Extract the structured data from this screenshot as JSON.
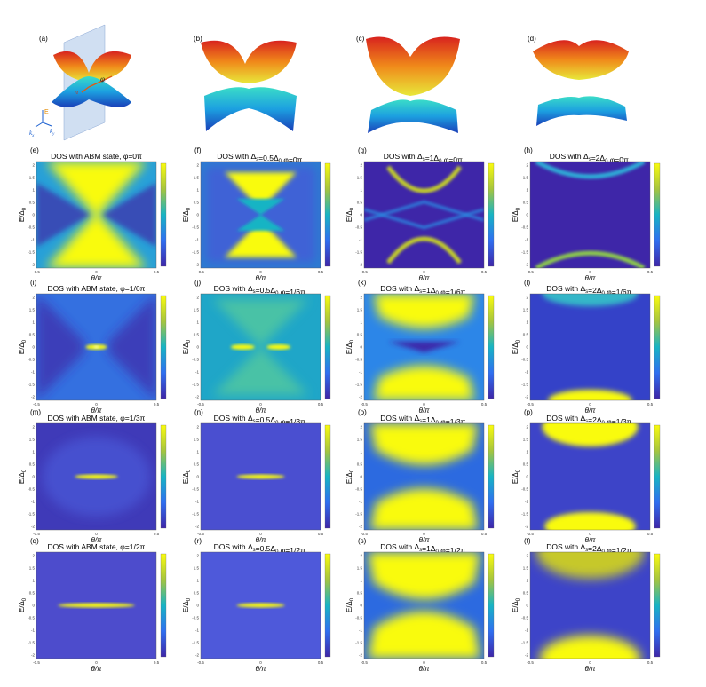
{
  "top_labels": [
    "(a)",
    "(b)",
    "(c)",
    "(d)"
  ],
  "axis_glyphs": {
    "e": "E",
    "kx": "k",
    "kx_sub": "x",
    "ky": "k",
    "ky_sub": "y",
    "phi": "φ",
    "n": "n"
  },
  "panels": [
    {
      "label": "(e)",
      "title": "DOS with ABM state, φ=0π"
    },
    {
      "label": "(f)",
      "title": "DOS with Δs=0.5Δ0 φ=0π,"
    },
    {
      "label": "(g)",
      "title": "DOS with Δs=1Δ0 φ=0π,"
    },
    {
      "label": "(h)",
      "title": "DOS with Δs=2Δ0 φ=0π,"
    },
    {
      "label": "(i)",
      "title": "DOS with ABM state, φ=1/6π"
    },
    {
      "label": "(j)",
      "title": "DOS with Δs=0.5Δ0 φ=1/6π,"
    },
    {
      "label": "(k)",
      "title": "DOS with Δs=1Δ0 φ=1/6π,"
    },
    {
      "label": "(l)",
      "title": "DOS with Δs=2Δ0 φ=1/6π,"
    },
    {
      "label": "(m)",
      "title": "DOS with ABM state, φ=1/3π"
    },
    {
      "label": "(n)",
      "title": "DOS with Δs=0.5Δ0 φ=1/3π,"
    },
    {
      "label": "(o)",
      "title": "DOS with Δs=1Δ0 φ=1/3π,"
    },
    {
      "label": "(p)",
      "title": "DOS with Δs=2Δ0 φ=1/3π,"
    },
    {
      "label": "(q)",
      "title": "DOS with ABM state, φ=1/2π"
    },
    {
      "label": "(r)",
      "title": "DOS with Δs=0.5Δ0 φ=1/2π,"
    },
    {
      "label": "(s)",
      "title": "DOS with Δs=1Δ0 φ=1/2π,"
    },
    {
      "label": "(t)",
      "title": "DOS with Δs=2Δ0 φ=1/2π,"
    }
  ],
  "xlabel": "θ/π",
  "ylabel": "E/Δ0",
  "xticks": [
    "-0.5",
    "0",
    "0.5"
  ],
  "yticks": [
    "2",
    "1.5",
    "1",
    "0.5",
    "0",
    "-0.5",
    "-1",
    "-1.5",
    "-2"
  ],
  "colors": {
    "low": "#3e26a8",
    "mid": "#17b4c4",
    "high": "#f9fb0e"
  }
}
